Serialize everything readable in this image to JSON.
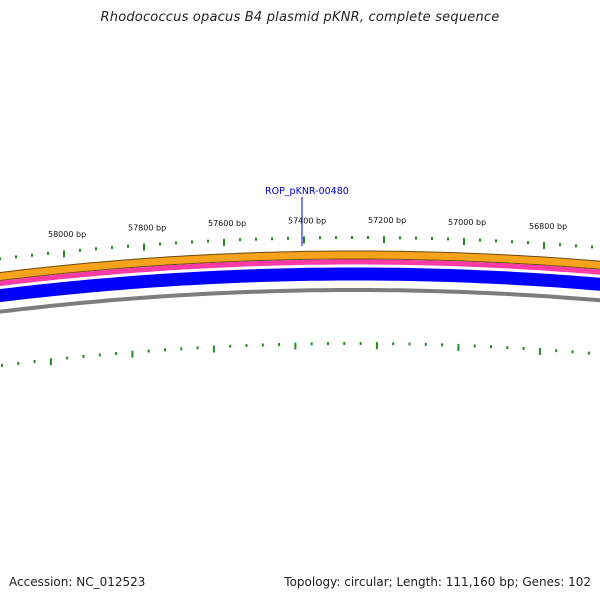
{
  "title": "Rhodococcus opacus B4 plasmid pKNR, complete sequence",
  "footer": {
    "accession": "Accession: NC_012523",
    "summary": "Topology: circular; Length: 111,160 bp; Genes: 102"
  },
  "gene_label": "ROP_pKNR-00480",
  "tick_labels": [
    "58000 bp",
    "57800 bp",
    "57600 bp",
    "57400 bp",
    "57200 bp",
    "57000 bp",
    "56800 bp"
  ],
  "colors": {
    "orange": "#f7a21b",
    "pink": "#ff3aa6",
    "blue": "#0000ff",
    "gray": "#7d7d7d",
    "tick": "#228b22",
    "label": "#0000cc"
  }
}
